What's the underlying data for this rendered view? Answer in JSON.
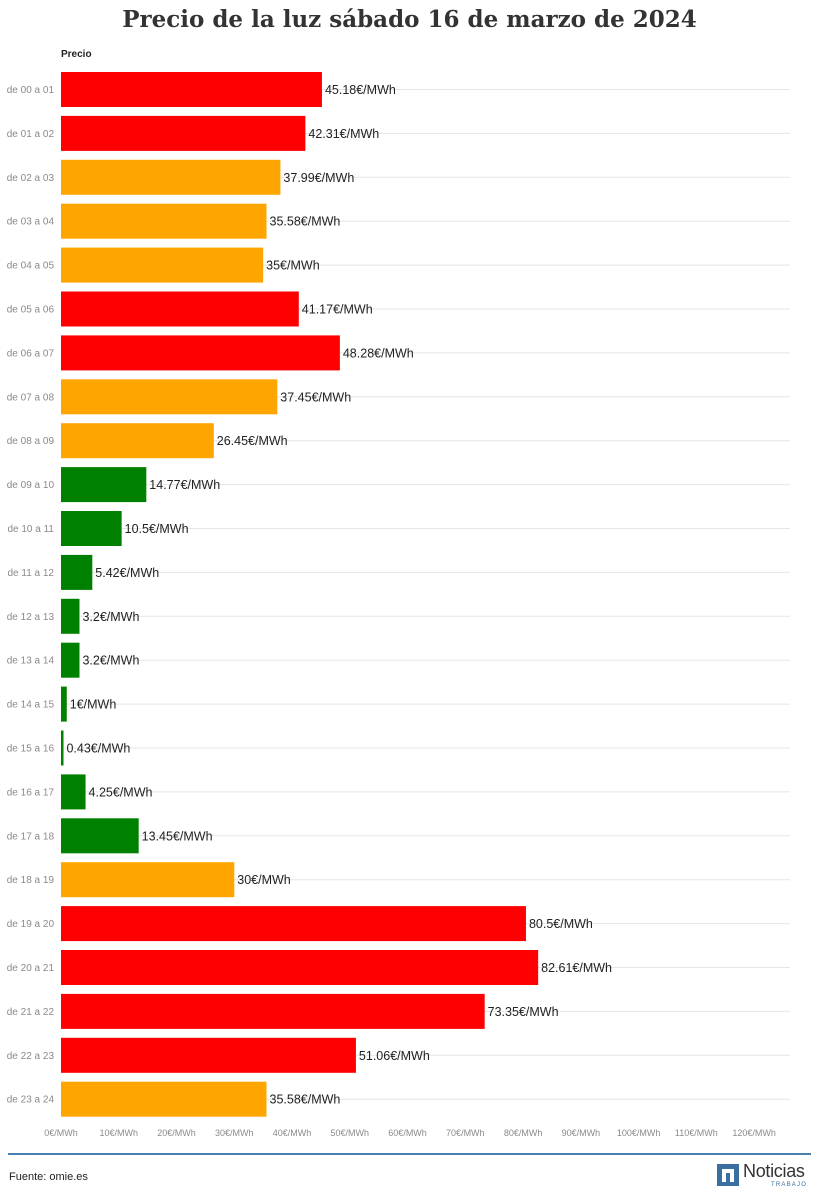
{
  "colors": {
    "high": "#ff0000",
    "mid": "#ffa500",
    "low": "#008000",
    "grid": "#e5e5e5",
    "footer_line": "#4a80b0",
    "logo": "#3a6fa0"
  },
  "chart_data": {
    "type": "bar",
    "orientation": "horizontal",
    "title": "Precio de la luz sábado 16 de marzo de 2024",
    "ylabel": "Precio",
    "value_suffix": "€/MWh",
    "xlim": [
      0,
      120
    ],
    "xticks": [
      "0€/MWh",
      "10€/MWh",
      "20€/MWh",
      "30€/MWh",
      "40€/MWh",
      "50€/MWh",
      "60€/MWh",
      "70€/MWh",
      "80€/MWh",
      "90€/MWh",
      "100€/MWh",
      "110€/MWh",
      "120€/MWh"
    ],
    "grid": true,
    "categories": [
      "de 00 a 01",
      "de 01 a 02",
      "de 02 a 03",
      "de 03 a 04",
      "de 04 a 05",
      "de 05 a 06",
      "de 06 a 07",
      "de 07 a 08",
      "de 08 a 09",
      "de 09 a 10",
      "de 10 a 11",
      "de 11 a 12",
      "de 12 a 13",
      "de 13 a 14",
      "de 14 a 15",
      "de 15 a 16",
      "de 16 a 17",
      "de 17 a 18",
      "de 18 a 19",
      "de 19 a 20",
      "de 20 a 21",
      "de 21 a 22",
      "de 22 a 23",
      "de 23 a 24"
    ],
    "values": [
      45.18,
      42.31,
      37.99,
      35.58,
      35,
      41.17,
      48.28,
      37.45,
      26.45,
      14.77,
      10.5,
      5.42,
      3.2,
      3.2,
      1,
      0.43,
      4.25,
      13.45,
      30,
      80.5,
      82.61,
      73.35,
      51.06,
      35.58
    ],
    "data_labels": [
      "45.18€/MWh",
      "42.31€/MWh",
      "37.99€/MWh",
      "35.58€/MWh",
      "35€/MWh",
      "41.17€/MWh",
      "48.28€/MWh",
      "37.45€/MWh",
      "26.45€/MWh",
      "14.77€/MWh",
      "10.5€/MWh",
      "5.42€/MWh",
      "3.2€/MWh",
      "3.2€/MWh",
      "1€/MWh",
      "0.43€/MWh",
      "4.25€/MWh",
      "13.45€/MWh",
      "30€/MWh",
      "80.5€/MWh",
      "82.61€/MWh",
      "73.35€/MWh",
      "51.06€/MWh",
      "35.58€/MWh"
    ],
    "bar_colors": [
      "high",
      "high",
      "mid",
      "mid",
      "mid",
      "high",
      "high",
      "mid",
      "mid",
      "low",
      "low",
      "low",
      "low",
      "low",
      "low",
      "low",
      "low",
      "low",
      "mid",
      "high",
      "high",
      "high",
      "high",
      "mid"
    ]
  },
  "footer": {
    "source": "Fuente: omie.es",
    "logo_name": "Noticias",
    "logo_sub": "TRABAJO",
    "logo_icon": "n-logo-icon"
  }
}
